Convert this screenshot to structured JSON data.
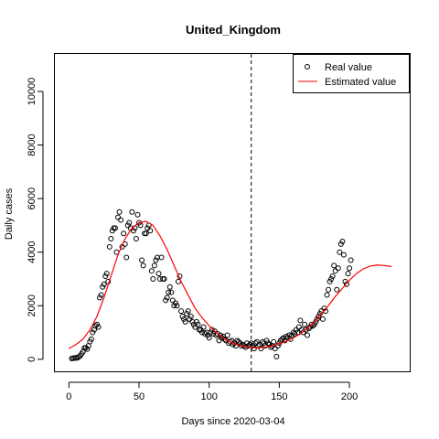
{
  "chart_data": {
    "type": "scatter",
    "title": "United_Kingdom",
    "xlabel": "Days since 2020-03-04",
    "ylabel": "Daily cases",
    "xlim": [
      -10,
      243
    ],
    "ylim": [
      -450,
      11400
    ],
    "x_ticks": [
      0,
      50,
      100,
      150,
      200
    ],
    "y_ticks": [
      0,
      2000,
      4000,
      6000,
      8000,
      10000
    ],
    "grid": false,
    "legend_position": "top-right",
    "vertical_reference_line": {
      "x": 130,
      "style": "dashed",
      "color": "#000000"
    },
    "series": [
      {
        "name": "Real value",
        "style": "open-circle",
        "color": "#000000",
        "points": [
          [
            2,
            30
          ],
          [
            3,
            40
          ],
          [
            4,
            40
          ],
          [
            5,
            60
          ],
          [
            6,
            50
          ],
          [
            7,
            90
          ],
          [
            8,
            120
          ],
          [
            9,
            200
          ],
          [
            10,
            280
          ],
          [
            11,
            420
          ],
          [
            12,
            430
          ],
          [
            13,
            380
          ],
          [
            14,
            500
          ],
          [
            15,
            660
          ],
          [
            16,
            750
          ],
          [
            17,
            1000
          ],
          [
            18,
            1100
          ],
          [
            19,
            1250
          ],
          [
            20,
            1300
          ],
          [
            21,
            1200
          ],
          [
            22,
            2300
          ],
          [
            23,
            2400
          ],
          [
            24,
            2700
          ],
          [
            25,
            2800
          ],
          [
            26,
            3100
          ],
          [
            27,
            3200
          ],
          [
            28,
            2900
          ],
          [
            29,
            4200
          ],
          [
            30,
            4500
          ],
          [
            31,
            4800
          ],
          [
            32,
            4900
          ],
          [
            33,
            4900
          ],
          [
            34,
            4000
          ],
          [
            35,
            5300
          ],
          [
            36,
            5500
          ],
          [
            37,
            5200
          ],
          [
            38,
            4200
          ],
          [
            39,
            4700
          ],
          [
            40,
            4300
          ],
          [
            41,
            3800
          ],
          [
            42,
            5000
          ],
          [
            43,
            5100
          ],
          [
            44,
            4900
          ],
          [
            45,
            5500
          ],
          [
            46,
            4800
          ],
          [
            47,
            4900
          ],
          [
            48,
            4500
          ],
          [
            49,
            5400
          ],
          [
            50,
            5100
          ],
          [
            51,
            5000
          ],
          [
            52,
            3700
          ],
          [
            53,
            3500
          ],
          [
            54,
            4700
          ],
          [
            55,
            4700
          ],
          [
            56,
            4900
          ],
          [
            57,
            5000
          ],
          [
            58,
            4800
          ],
          [
            59,
            3300
          ],
          [
            60,
            3000
          ],
          [
            61,
            3500
          ],
          [
            62,
            3700
          ],
          [
            63,
            3800
          ],
          [
            64,
            3200
          ],
          [
            65,
            3000
          ],
          [
            66,
            3800
          ],
          [
            67,
            3000
          ],
          [
            68,
            3000
          ],
          [
            69,
            2200
          ],
          [
            70,
            2300
          ],
          [
            71,
            2500
          ],
          [
            72,
            2700
          ],
          [
            73,
            2500
          ],
          [
            74,
            2200
          ],
          [
            75,
            2000
          ],
          [
            76,
            2100
          ],
          [
            77,
            2000
          ],
          [
            78,
            2900
          ],
          [
            79,
            3100
          ],
          [
            80,
            1800
          ],
          [
            81,
            1600
          ],
          [
            82,
            1500
          ],
          [
            83,
            1400
          ],
          [
            84,
            1700
          ],
          [
            85,
            1800
          ],
          [
            86,
            1500
          ],
          [
            87,
            1600
          ],
          [
            88,
            1400
          ],
          [
            89,
            1300
          ],
          [
            90,
            1200
          ],
          [
            91,
            1400
          ],
          [
            92,
            1300
          ],
          [
            93,
            1100
          ],
          [
            94,
            1100
          ],
          [
            95,
            1000
          ],
          [
            96,
            1200
          ],
          [
            97,
            950
          ],
          [
            98,
            1000
          ],
          [
            99,
            900
          ],
          [
            100,
            800
          ],
          [
            101,
            1000
          ],
          [
            102,
            1100
          ],
          [
            103,
            950
          ],
          [
            104,
            1050
          ],
          [
            105,
            900
          ],
          [
            106,
            950
          ],
          [
            107,
            700
          ],
          [
            108,
            900
          ],
          [
            109,
            800
          ],
          [
            110,
            850
          ],
          [
            111,
            750
          ],
          [
            112,
            700
          ],
          [
            113,
            900
          ],
          [
            114,
            600
          ],
          [
            115,
            650
          ],
          [
            116,
            700
          ],
          [
            117,
            550
          ],
          [
            118,
            600
          ],
          [
            119,
            500
          ],
          [
            120,
            700
          ],
          [
            121,
            650
          ],
          [
            122,
            600
          ],
          [
            123,
            500
          ],
          [
            124,
            550
          ],
          [
            125,
            500
          ],
          [
            126,
            450
          ],
          [
            127,
            600
          ],
          [
            128,
            500
          ],
          [
            129,
            550
          ],
          [
            130,
            600
          ],
          [
            131,
            500
          ],
          [
            132,
            400
          ],
          [
            133,
            600
          ],
          [
            134,
            650
          ],
          [
            135,
            500
          ],
          [
            136,
            550
          ],
          [
            137,
            400
          ],
          [
            138,
            650
          ],
          [
            139,
            600
          ],
          [
            140,
            500
          ],
          [
            141,
            700
          ],
          [
            142,
            600
          ],
          [
            143,
            550
          ],
          [
            144,
            450
          ],
          [
            145,
            500
          ],
          [
            146,
            650
          ],
          [
            147,
            400
          ],
          [
            148,
            100
          ],
          [
            149,
            500
          ],
          [
            150,
            600
          ],
          [
            151,
            700
          ],
          [
            152,
            750
          ],
          [
            153,
            800
          ],
          [
            154,
            700
          ],
          [
            155,
            850
          ],
          [
            156,
            800
          ],
          [
            157,
            900
          ],
          [
            158,
            750
          ],
          [
            159,
            900
          ],
          [
            160,
            1000
          ],
          [
            161,
            950
          ],
          [
            162,
            1100
          ],
          [
            163,
            1000
          ],
          [
            164,
            1200
          ],
          [
            165,
            1450
          ],
          [
            166,
            1100
          ],
          [
            167,
            1000
          ],
          [
            168,
            1300
          ],
          [
            169,
            1100
          ],
          [
            170,
            900
          ],
          [
            171,
            1150
          ],
          [
            172,
            1200
          ],
          [
            173,
            1300
          ],
          [
            174,
            1250
          ],
          [
            175,
            1300
          ],
          [
            176,
            1400
          ],
          [
            177,
            1500
          ],
          [
            178,
            1600
          ],
          [
            179,
            1700
          ],
          [
            180,
            1800
          ],
          [
            181,
            1500
          ],
          [
            182,
            1900
          ],
          [
            183,
            1800
          ],
          [
            184,
            2400
          ],
          [
            185,
            2600
          ],
          [
            186,
            2900
          ],
          [
            187,
            3000
          ],
          [
            188,
            3100
          ],
          [
            189,
            3500
          ],
          [
            190,
            3300
          ],
          [
            191,
            2600
          ],
          [
            192,
            3400
          ],
          [
            193,
            4000
          ],
          [
            194,
            4300
          ],
          [
            195,
            4400
          ],
          [
            196,
            3900
          ],
          [
            197,
            2900
          ],
          [
            198,
            2800
          ],
          [
            199,
            3200
          ],
          [
            200,
            3400
          ],
          [
            201,
            3700
          ]
        ]
      },
      {
        "name": "Estimated value",
        "style": "line",
        "color": "#ff0000",
        "points": [
          [
            0,
            400
          ],
          [
            5,
            550
          ],
          [
            10,
            750
          ],
          [
            15,
            1100
          ],
          [
            20,
            1600
          ],
          [
            25,
            2300
          ],
          [
            30,
            3100
          ],
          [
            35,
            3900
          ],
          [
            40,
            4500
          ],
          [
            45,
            4900
          ],
          [
            50,
            5100
          ],
          [
            55,
            5150
          ],
          [
            60,
            5000
          ],
          [
            65,
            4600
          ],
          [
            70,
            4100
          ],
          [
            75,
            3500
          ],
          [
            80,
            2900
          ],
          [
            85,
            2400
          ],
          [
            90,
            1900
          ],
          [
            95,
            1550
          ],
          [
            100,
            1250
          ],
          [
            105,
            1000
          ],
          [
            110,
            800
          ],
          [
            115,
            650
          ],
          [
            120,
            550
          ],
          [
            125,
            480
          ],
          [
            130,
            440
          ],
          [
            135,
            430
          ],
          [
            140,
            450
          ],
          [
            145,
            500
          ],
          [
            150,
            580
          ],
          [
            155,
            680
          ],
          [
            160,
            800
          ],
          [
            165,
            950
          ],
          [
            170,
            1150
          ],
          [
            175,
            1400
          ],
          [
            180,
            1700
          ],
          [
            185,
            2000
          ],
          [
            190,
            2350
          ],
          [
            195,
            2650
          ],
          [
            200,
            2950
          ],
          [
            205,
            3200
          ],
          [
            210,
            3380
          ],
          [
            215,
            3480
          ],
          [
            220,
            3520
          ],
          [
            225,
            3500
          ],
          [
            230,
            3460
          ]
        ]
      }
    ]
  }
}
